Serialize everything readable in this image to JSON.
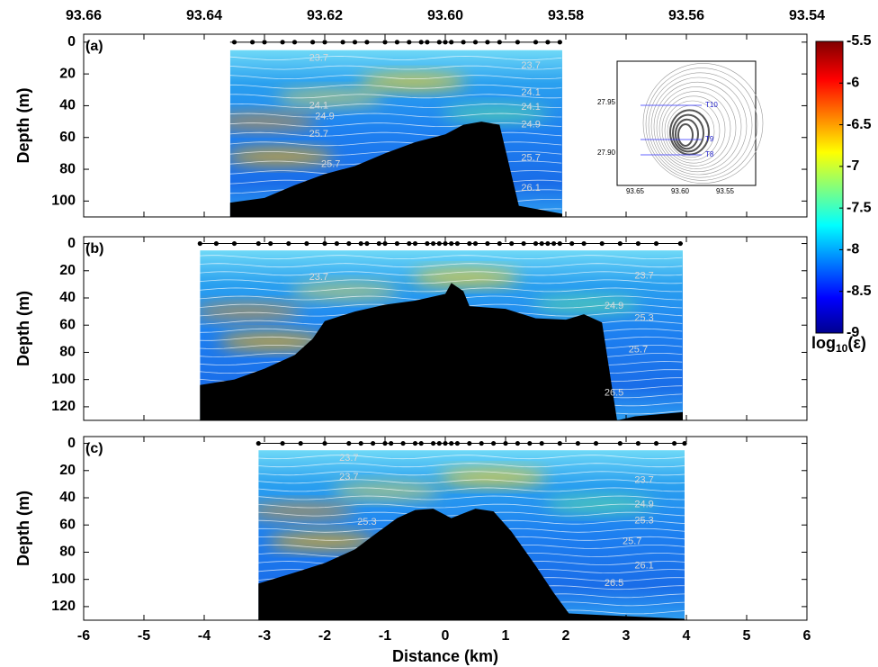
{
  "lon_axis": {
    "lim": [
      93.66,
      93.54
    ],
    "ticks": [
      93.66,
      93.64,
      93.62,
      {
        "value": 93.6,
        "label": "93.60"
      },
      93.58,
      93.56,
      93.54
    ]
  },
  "x_axis": {
    "label": "Distance (km)",
    "lim": [
      -6,
      6
    ],
    "ticks": [
      -6,
      -5,
      -4,
      -3,
      -2,
      -1,
      0,
      1,
      2,
      3,
      4,
      5,
      6
    ]
  },
  "panels": [
    {
      "label": "(a)",
      "ylabel": "Depth (m)",
      "ylim": [
        -5,
        110
      ],
      "yticks": [
        0,
        20,
        40,
        60,
        80,
        100
      ],
      "section": [
        -3.57,
        1.94
      ],
      "stations": [
        -3.5,
        -3.2,
        -3.0,
        -2.7,
        -2.5,
        -2.2,
        -2.0,
        -1.7,
        -1.5,
        -1.3,
        -1.0,
        -0.8,
        -0.6,
        -0.4,
        -0.3,
        -0.1,
        0.0,
        0.1,
        0.3,
        0.5,
        0.7,
        0.9,
        1.2,
        1.5,
        1.7,
        1.9
      ],
      "seafloor": {
        "x": [
          -3.57,
          -3.0,
          -2.5,
          -2.0,
          -1.5,
          -1.0,
          -0.5,
          0.0,
          0.3,
          0.6,
          0.9,
          1.22,
          1.94
        ],
        "depth": [
          101,
          98,
          90,
          83,
          78,
          70,
          63,
          58,
          52,
          50,
          52,
          103,
          108
        ]
      },
      "contour_labels": [
        {
          "value": 23.7,
          "x": -2.1,
          "depth": 10
        },
        {
          "value": 23.7,
          "x": 1.42,
          "depth": 15
        },
        {
          "value": 24.1,
          "x": -2.1,
          "depth": 40
        },
        {
          "value": 24.9,
          "x": -2.0,
          "depth": 47
        },
        {
          "value": 24.1,
          "x": 1.42,
          "depth": 32
        },
        {
          "value": 24.1,
          "x": 1.42,
          "depth": 41
        },
        {
          "value": 24.9,
          "x": 1.42,
          "depth": 52
        },
        {
          "value": 25.7,
          "x": -2.1,
          "depth": 58
        },
        {
          "value": 25.7,
          "x": -1.9,
          "depth": 77
        },
        {
          "value": 25.7,
          "x": 1.42,
          "depth": 73
        },
        {
          "value": 26.1,
          "x": 1.42,
          "depth": 92
        }
      ]
    },
    {
      "label": "(b)",
      "ylabel": "Depth (m)",
      "ylim": [
        -5,
        130
      ],
      "yticks": [
        0,
        20,
        40,
        60,
        80,
        100,
        120
      ],
      "section": [
        -4.07,
        3.94
      ],
      "stations": [
        -4.07,
        -3.8,
        -3.5,
        -3.1,
        -2.9,
        -2.6,
        -2.3,
        -2.0,
        -1.8,
        -1.6,
        -1.4,
        -1.3,
        -1.1,
        -1.0,
        -0.8,
        -0.6,
        -0.5,
        -0.3,
        -0.2,
        -0.1,
        0.0,
        0.1,
        0.2,
        0.4,
        0.5,
        0.7,
        0.9,
        1.1,
        1.3,
        1.5,
        1.6,
        1.7,
        1.8,
        1.9,
        2.1,
        2.3,
        2.6,
        2.9,
        3.2,
        3.5,
        3.9
      ],
      "seafloor": {
        "x": [
          -4.07,
          -3.5,
          -3.0,
          -2.5,
          -2.2,
          -2.0,
          -1.5,
          -1.0,
          -0.5,
          0.0,
          0.1,
          0.3,
          0.4,
          1.0,
          1.5,
          2.0,
          2.3,
          2.6,
          2.85,
          3.15,
          3.94
        ],
        "depth": [
          104,
          100,
          92,
          82,
          70,
          57,
          50,
          45,
          42,
          37,
          29,
          35,
          46,
          48,
          55,
          56,
          52,
          58,
          130,
          127,
          124
        ]
      },
      "contour_labels": [
        {
          "value": 23.7,
          "x": -2.1,
          "depth": 25
        },
        {
          "value": 23.7,
          "x": 3.3,
          "depth": 24
        },
        {
          "value": 24.9,
          "x": 2.8,
          "depth": 46
        },
        {
          "value": 25.3,
          "x": 3.3,
          "depth": 55
        },
        {
          "value": 25.7,
          "x": 3.2,
          "depth": 78
        },
        {
          "value": 26.5,
          "x": 2.8,
          "depth": 110
        }
      ]
    },
    {
      "label": "(c)",
      "ylabel": "Depth (m)",
      "ylim": [
        -5,
        130
      ],
      "yticks": [
        0,
        20,
        40,
        60,
        80,
        100,
        120
      ],
      "section": [
        -3.1,
        3.97
      ],
      "stations": [
        -3.1,
        -2.7,
        -2.4,
        -2.0,
        -1.6,
        -1.4,
        -1.2,
        -1.0,
        -0.9,
        -0.7,
        -0.5,
        -0.4,
        -0.2,
        -0.1,
        0.0,
        0.1,
        0.2,
        0.4,
        0.6,
        0.8,
        1.0,
        1.2,
        1.4,
        1.6,
        1.9,
        2.2,
        2.5,
        2.9,
        3.2,
        3.5,
        3.8,
        3.97
      ],
      "seafloor": {
        "x": [
          -3.1,
          -2.5,
          -2.0,
          -1.5,
          -1.2,
          -0.8,
          -0.5,
          -0.2,
          0.1,
          0.5,
          0.8,
          1.1,
          1.5,
          1.8,
          2.05,
          2.5,
          3.97
        ],
        "depth": [
          103,
          95,
          88,
          78,
          68,
          55,
          49,
          48,
          55,
          48,
          50,
          65,
          90,
          110,
          125,
          126,
          129
        ]
      },
      "contour_labels": [
        {
          "value": 23.7,
          "x": -1.6,
          "depth": 11
        },
        {
          "value": 23.7,
          "x": -1.6,
          "depth": 25
        },
        {
          "value": 23.7,
          "x": 3.3,
          "depth": 27
        },
        {
          "value": 24.9,
          "x": 3.3,
          "depth": 45
        },
        {
          "value": 25.3,
          "x": -1.3,
          "depth": 58
        },
        {
          "value": 25.3,
          "x": 3.3,
          "depth": 57
        },
        {
          "value": 25.7,
          "x": 3.1,
          "depth": 72
        },
        {
          "value": 26.1,
          "x": 3.3,
          "depth": 90
        },
        {
          "value": 26.5,
          "x": 2.8,
          "depth": 103
        }
      ]
    }
  ],
  "colorbar": {
    "lim": [
      -9,
      -5.5
    ],
    "ticks": [
      -5.5,
      -6,
      -6.5,
      -7,
      -7.5,
      -8,
      -8.5,
      -9
    ],
    "label": {
      "base": "log",
      "subscript": "10",
      "rest": "(ε)"
    }
  },
  "inset": {
    "xticks": [
      "93.65",
      "93.60",
      "93.55"
    ],
    "yticks": [
      "27.95",
      "27.90"
    ],
    "transects": [
      "T10",
      "T9",
      "T8"
    ]
  }
}
